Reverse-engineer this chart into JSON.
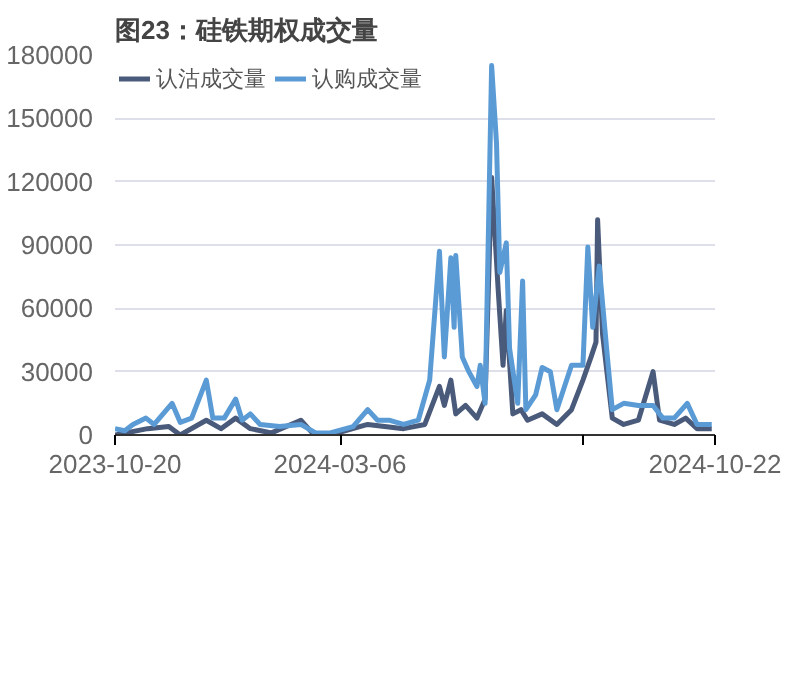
{
  "chart_data": {
    "type": "line",
    "title": "图23：硅铁期权成交量",
    "x": [
      "2023-10-20",
      "2023-10-26",
      "2023-10-31",
      "2023-11-08",
      "2023-11-13",
      "2023-11-24",
      "2023-11-29",
      "2023-12-06",
      "2023-12-15",
      "2023-12-19",
      "2023-12-26",
      "2024-01-02",
      "2024-01-06",
      "2024-01-11",
      "2024-01-17",
      "2024-01-29",
      "2024-02-11",
      "2024-02-20",
      "2024-02-29",
      "2024-03-14",
      "2024-03-23",
      "2024-03-29",
      "2024-04-05",
      "2024-04-14",
      "2024-04-23",
      "2024-04-30",
      "2024-05-06",
      "2024-05-09",
      "2024-05-13",
      "2024-05-15",
      "2024-05-16",
      "2024-05-20",
      "2024-05-24",
      "2024-05-29",
      "2024-05-31",
      "2024-06-03",
      "2024-06-07",
      "2024-06-10",
      "2024-06-12",
      "2024-06-16",
      "2024-06-18",
      "2024-06-23",
      "2024-06-26",
      "2024-06-28",
      "2024-07-04",
      "2024-07-08",
      "2024-07-13",
      "2024-07-17",
      "2024-07-26",
      "2024-08-02",
      "2024-08-05",
      "2024-08-08",
      "2024-08-12",
      "2024-08-17",
      "2024-08-20",
      "2024-08-27",
      "2024-09-05",
      "2024-09-14",
      "2024-09-20",
      "2024-09-27",
      "2024-10-05",
      "2024-10-11",
      "2024-10-20"
    ],
    "series": [
      {
        "name": "认沽成交量",
        "color": "#4a5a7a",
        "x": [
          "2023-10-20",
          "2023-11-09",
          "2023-11-22",
          "2023-11-29",
          "2023-12-15",
          "2023-12-24",
          "2024-01-02",
          "2024-01-11",
          "2024-01-24",
          "2024-02-11",
          "2024-02-18",
          "2024-02-29",
          "2024-03-23",
          "2024-04-14",
          "2024-04-27",
          "2024-05-06",
          "2024-05-09",
          "2024-05-13",
          "2024-05-16",
          "2024-05-22",
          "2024-05-29",
          "2024-06-03",
          "2024-06-07",
          "2024-06-11",
          "2024-06-14",
          "2024-06-16",
          "2024-06-20",
          "2024-06-25",
          "2024-06-29",
          "2024-07-08",
          "2024-07-17",
          "2024-07-26",
          "2024-08-02",
          "2024-08-07",
          "2024-08-10",
          "2024-08-11",
          "2024-08-14",
          "2024-08-20",
          "2024-08-27",
          "2024-09-05",
          "2024-09-14",
          "2024-09-18",
          "2024-09-27",
          "2024-10-04",
          "2024-10-11",
          "2024-10-20"
        ],
        "values": [
          0,
          3000,
          4000,
          0,
          7000,
          3000,
          8000,
          3000,
          1000,
          7000,
          1000,
          0,
          5000,
          3000,
          5000,
          23000,
          14000,
          26000,
          10000,
          14000,
          8000,
          17000,
          122000,
          69000,
          33000,
          59000,
          10000,
          12000,
          7000,
          10000,
          5000,
          12000,
          26000,
          37000,
          44000,
          102000,
          48000,
          8000,
          5000,
          7000,
          30000,
          7000,
          5000,
          8000,
          3000,
          3000
        ]
      },
      {
        "name": "认购成交量",
        "color": "#5b9bd5",
        "values": [
          3000,
          2000,
          5000,
          8000,
          5000,
          15000,
          6000,
          8000,
          26000,
          8000,
          8000,
          17000,
          7000,
          10000,
          5000,
          4000,
          5000,
          1000,
          1000,
          4000,
          12000,
          7000,
          7000,
          5000,
          7000,
          26000,
          87000,
          37000,
          84000,
          51000,
          85000,
          37000,
          30000,
          23000,
          33000,
          15000,
          175000,
          138000,
          77000,
          91000,
          41000,
          15000,
          73000,
          12000,
          19000,
          32000,
          30000,
          12000,
          33000,
          33000,
          89000,
          51000,
          80000,
          37000,
          12000,
          15000,
          14000,
          14000,
          8000,
          8000,
          15000,
          5000,
          5000
        ]
      }
    ],
    "xlim": [
      "2023-10-20",
      "2024-10-22"
    ],
    "xticks": [
      {
        "value": "2023-10-20",
        "label": "2023-10-20"
      },
      {
        "value": "2024-03-06",
        "label": "2024-03-06"
      },
      {
        "value": "2024-08-02",
        "label": null
      },
      {
        "value": "2024-10-22",
        "label": "2024-10-22"
      }
    ],
    "ylim": [
      0,
      180000
    ],
    "yticks": [
      0,
      30000,
      60000,
      90000,
      120000,
      150000,
      180000
    ],
    "grid": "y",
    "legend": "top",
    "line_style": "solid"
  }
}
